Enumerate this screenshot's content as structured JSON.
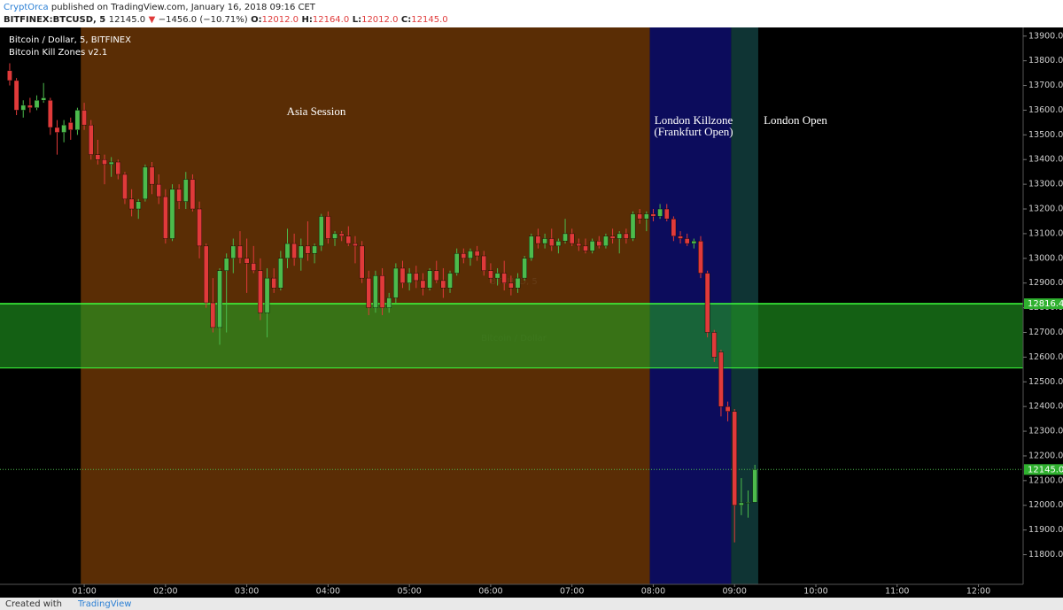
{
  "header": {
    "author": "CryptOrca",
    "published": "published on TradingView.com, January 16, 2018 09:16 CET",
    "symbol": "BITFINEX:BTCUSD, 5",
    "price": "12145.0",
    "direction": "▼",
    "change": "−1456.0 (−10.71%)",
    "o_label": "O:",
    "o": "12012.0",
    "h_label": "H:",
    "h": "12164.0",
    "l_label": "L:",
    "l": "12012.0",
    "c_label": "C:",
    "c": "12145.0"
  },
  "footer": {
    "text": "Created with",
    "brand": "TradingView"
  },
  "chart_data": {
    "type": "candlestick",
    "title": "Bitcoin / Dollar, 5, BITFINEX",
    "indicator": "Bitcoin Kill Zones v2.1",
    "watermark": [
      "BTCUSD, 5",
      "Bitcoin / Dollar"
    ],
    "up_color": "#4cbb4c",
    "down_color": "#e03a3a",
    "xlim": [
      "00:00",
      "12:33"
    ],
    "xticks": [
      "01:00",
      "02:00",
      "03:00",
      "04:00",
      "05:00",
      "06:00",
      "07:00",
      "08:00",
      "09:00",
      "10:00",
      "11:00",
      "12:00"
    ],
    "ylim": [
      11680,
      13935
    ],
    "yticks": [
      {
        "value": 11800,
        "label": "11800.0"
      },
      {
        "value": 11900,
        "label": "11900.0"
      },
      {
        "value": 12000,
        "label": "12000.0"
      },
      {
        "value": 12100,
        "label": "12100.0"
      },
      {
        "value": 12200,
        "label": "12200.0"
      },
      {
        "value": 12300,
        "label": "12300.0"
      },
      {
        "value": 12400,
        "label": "12400.0"
      },
      {
        "value": 12500,
        "label": "12500.0"
      },
      {
        "value": 12600,
        "label": "12600.0"
      },
      {
        "value": 12700,
        "label": "12700.0"
      },
      {
        "value": 12800,
        "label": "12800.0"
      },
      {
        "value": 12900,
        "label": "12900.0"
      },
      {
        "value": 13000,
        "label": "13000.0"
      },
      {
        "value": 13100,
        "label": "13100.0"
      },
      {
        "value": 13200,
        "label": "13200.0"
      },
      {
        "value": 13300,
        "label": "13300.0"
      },
      {
        "value": 13400,
        "label": "13400.0"
      },
      {
        "value": 13500,
        "label": "13500.0"
      },
      {
        "value": 13600,
        "label": "13600.0"
      },
      {
        "value": 13700,
        "label": "13700.0"
      },
      {
        "value": 13800,
        "label": "13800.0"
      },
      {
        "value": 13900,
        "label": "13900.0"
      }
    ],
    "zones": [
      {
        "label": [
          "Asia Session"
        ],
        "start": "01:00",
        "end": "08:00",
        "color": "#5a2d05"
      },
      {
        "label": [
          "London Killzone",
          "(Frankfurt Open)"
        ],
        "start": "08:00",
        "end": "09:00",
        "color": "#0c0c5c"
      },
      {
        "label": [
          "London Open"
        ],
        "start": "09:00",
        "end": "09:20",
        "color": "#0f3434"
      }
    ],
    "band": {
      "ylim": [
        12556,
        12816.4
      ],
      "value_label": "12816.4",
      "color": "#22a022",
      "edge_color": "#3dff3d"
    },
    "last_price": {
      "value": 12145,
      "label": "12145.0"
    },
    "x": [
      "00:05",
      "00:10",
      "00:15",
      "00:20",
      "00:25",
      "00:30",
      "00:35",
      "00:40",
      "00:45",
      "00:50",
      "00:55",
      "01:00",
      "01:05",
      "01:10",
      "01:15",
      "01:20",
      "01:25",
      "01:30",
      "01:35",
      "01:40",
      "01:45",
      "01:50",
      "01:55",
      "02:00",
      "02:05",
      "02:10",
      "02:15",
      "02:20",
      "02:25",
      "02:30",
      "02:35",
      "02:40",
      "02:45",
      "02:50",
      "02:55",
      "03:00",
      "03:05",
      "03:10",
      "03:15",
      "03:20",
      "03:25",
      "03:30",
      "03:35",
      "03:40",
      "03:45",
      "03:50",
      "03:55",
      "04:00",
      "04:05",
      "04:10",
      "04:15",
      "04:20",
      "04:25",
      "04:30",
      "04:35",
      "04:40",
      "04:45",
      "04:50",
      "04:55",
      "05:00",
      "05:05",
      "05:10",
      "05:15",
      "05:20",
      "05:25",
      "05:30",
      "05:35",
      "05:40",
      "05:45",
      "05:50",
      "05:55",
      "06:00",
      "06:05",
      "06:10",
      "06:15",
      "06:20",
      "06:25",
      "06:30",
      "06:35",
      "06:40",
      "06:45",
      "06:50",
      "06:55",
      "07:00",
      "07:05",
      "07:10",
      "07:15",
      "07:20",
      "07:25",
      "07:30",
      "07:35",
      "07:40",
      "07:45",
      "07:50",
      "07:55",
      "08:00",
      "08:05",
      "08:10",
      "08:15",
      "08:20",
      "08:25",
      "08:30",
      "08:35",
      "08:40",
      "08:45",
      "08:50",
      "08:55",
      "09:00",
      "09:05",
      "09:10",
      "09:15"
    ],
    "candles": [
      [
        13760,
        13790,
        13700,
        13720
      ],
      [
        13720,
        13730,
        13580,
        13600
      ],
      [
        13600,
        13640,
        13570,
        13620
      ],
      [
        13620,
        13650,
        13590,
        13610
      ],
      [
        13610,
        13660,
        13600,
        13640
      ],
      [
        13640,
        13710,
        13630,
        13650
      ],
      [
        13640,
        13650,
        13500,
        13530
      ],
      [
        13530,
        13560,
        13420,
        13510
      ],
      [
        13510,
        13560,
        13470,
        13540
      ],
      [
        13550,
        13570,
        13480,
        13520
      ],
      [
        13520,
        13610,
        13500,
        13600
      ],
      [
        13600,
        13630,
        13520,
        13540
      ],
      [
        13540,
        13560,
        13400,
        13420
      ],
      [
        13420,
        13480,
        13380,
        13400
      ],
      [
        13400,
        13420,
        13300,
        13380
      ],
      [
        13380,
        13410,
        13330,
        13390
      ],
      [
        13390,
        13400,
        13320,
        13340
      ],
      [
        13340,
        13350,
        13220,
        13240
      ],
      [
        13240,
        13280,
        13170,
        13200
      ],
      [
        13200,
        13240,
        13160,
        13230
      ],
      [
        13240,
        13380,
        13230,
        13370
      ],
      [
        13370,
        13390,
        13260,
        13300
      ],
      [
        13300,
        13340,
        13220,
        13250
      ],
      [
        13250,
        13280,
        13060,
        13080
      ],
      [
        13080,
        13300,
        13070,
        13280
      ],
      [
        13280,
        13300,
        13200,
        13230
      ],
      [
        13230,
        13350,
        13200,
        13320
      ],
      [
        13320,
        13340,
        13190,
        13200
      ],
      [
        13200,
        13230,
        13000,
        13050
      ],
      [
        13050,
        13060,
        12800,
        12820
      ],
      [
        12820,
        12920,
        12700,
        12720
      ],
      [
        12720,
        12960,
        12650,
        12950
      ],
      [
        12950,
        13020,
        12700,
        13000
      ],
      [
        13000,
        13080,
        12940,
        13050
      ],
      [
        13050,
        13110,
        12980,
        13000
      ],
      [
        13000,
        13080,
        12860,
        12980
      ],
      [
        12980,
        13050,
        12940,
        12950
      ],
      [
        12950,
        13000,
        12750,
        12780
      ],
      [
        12780,
        12960,
        12680,
        12920
      ],
      [
        12920,
        12960,
        12860,
        12880
      ],
      [
        12880,
        13030,
        12870,
        13000
      ],
      [
        13000,
        13120,
        12960,
        13060
      ],
      [
        13060,
        13100,
        12970,
        13000
      ],
      [
        13000,
        13080,
        12950,
        13050
      ],
      [
        13050,
        13150,
        12990,
        13020
      ],
      [
        13020,
        13060,
        12980,
        13050
      ],
      [
        13050,
        13180,
        13030,
        13170
      ],
      [
        13170,
        13190,
        13060,
        13080
      ],
      [
        13080,
        13110,
        13050,
        13100
      ],
      [
        13100,
        13110,
        13070,
        13090
      ],
      [
        13090,
        13130,
        13050,
        13060
      ],
      [
        13060,
        13090,
        12980,
        13050
      ],
      [
        13050,
        13070,
        12900,
        12920
      ],
      [
        12920,
        12950,
        12770,
        12800
      ],
      [
        12800,
        12950,
        12780,
        12930
      ],
      [
        12930,
        12960,
        12770,
        12800
      ],
      [
        12800,
        12860,
        12780,
        12840
      ],
      [
        12840,
        12980,
        12820,
        12960
      ],
      [
        12960,
        12990,
        12880,
        12900
      ],
      [
        12900,
        12960,
        12870,
        12940
      ],
      [
        12940,
        12970,
        12880,
        12910
      ],
      [
        12910,
        12940,
        12850,
        12880
      ],
      [
        12880,
        12960,
        12870,
        12950
      ],
      [
        12950,
        12990,
        12900,
        12910
      ],
      [
        12910,
        12960,
        12840,
        12880
      ],
      [
        12880,
        12950,
        12860,
        12940
      ],
      [
        12940,
        13040,
        12930,
        13020
      ],
      [
        13020,
        13040,
        12980,
        13000
      ],
      [
        13000,
        13040,
        12970,
        13030
      ],
      [
        13030,
        13050,
        12990,
        13010
      ],
      [
        13010,
        13030,
        12930,
        12950
      ],
      [
        12950,
        12980,
        12900,
        12920
      ],
      [
        12920,
        12960,
        12890,
        12940
      ],
      [
        12940,
        12990,
        12870,
        12900
      ],
      [
        12900,
        12930,
        12850,
        12880
      ],
      [
        12880,
        12940,
        12860,
        12920
      ],
      [
        12920,
        13010,
        12910,
        13000
      ],
      [
        13000,
        13100,
        12990,
        13090
      ],
      [
        13090,
        13120,
        13040,
        13060
      ],
      [
        13060,
        13100,
        13040,
        13080
      ],
      [
        13080,
        13120,
        13030,
        13050
      ],
      [
        13050,
        13080,
        13020,
        13070
      ],
      [
        13070,
        13160,
        13060,
        13100
      ],
      [
        13100,
        13120,
        13050,
        13060
      ],
      [
        13060,
        13080,
        13030,
        13050
      ],
      [
        13050,
        13080,
        13020,
        13030
      ],
      [
        13030,
        13080,
        13020,
        13070
      ],
      [
        13070,
        13090,
        13040,
        13050
      ],
      [
        13050,
        13100,
        13040,
        13090
      ],
      [
        13090,
        13120,
        13060,
        13080
      ],
      [
        13080,
        13110,
        13020,
        13100
      ],
      [
        13100,
        13120,
        13060,
        13080
      ],
      [
        13080,
        13190,
        13070,
        13180
      ],
      [
        13180,
        13200,
        13140,
        13160
      ],
      [
        13160,
        13190,
        13110,
        13180
      ],
      [
        13180,
        13200,
        13150,
        13170
      ],
      [
        13170,
        13220,
        13160,
        13200
      ],
      [
        13200,
        13220,
        13150,
        13160
      ],
      [
        13160,
        13170,
        13070,
        13090
      ],
      [
        13090,
        13110,
        13060,
        13080
      ],
      [
        13080,
        13100,
        13050,
        13060
      ],
      [
        13060,
        13080,
        13040,
        13070
      ],
      [
        13070,
        13090,
        12920,
        12940
      ],
      [
        12940,
        12950,
        12680,
        12700
      ],
      [
        12700,
        12710,
        12580,
        12600
      ],
      [
        12620,
        12630,
        12360,
        12400
      ],
      [
        12400,
        12420,
        12340,
        12380
      ],
      [
        12380,
        12390,
        11850,
        12000
      ],
      [
        12000,
        12110,
        11960,
        12010
      ],
      [
        12010,
        12060,
        11950,
        12012
      ],
      [
        12012,
        12164,
        12012,
        12145
      ]
    ]
  }
}
